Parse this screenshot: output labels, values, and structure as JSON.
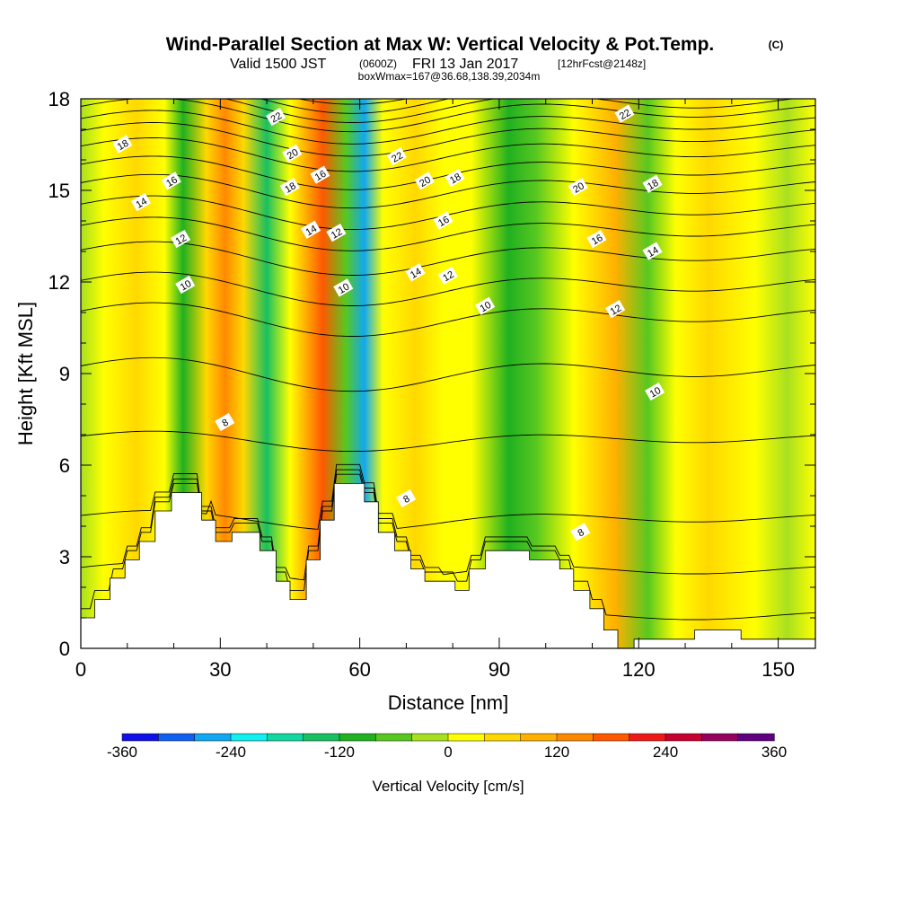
{
  "header": {
    "title": "Wind-Parallel Section at Max W: Vertical Velocity & Pot.Temp.",
    "title_mark": "(C)",
    "valid_prefix": "Valid 1500 JST",
    "valid_utc": "(0600Z)",
    "valid_date": "FRI 13 Jan 2017",
    "forecast": "[12hrFcst@2148z]",
    "box_info": "boxWmax=167@36.68,138.39,2034m"
  },
  "chart_data": {
    "type": "heatmap",
    "xlabel": "Distance [nm]",
    "ylabel": "Height [Kft MSL]",
    "xlim": [
      0,
      158
    ],
    "ylim": [
      0,
      18
    ],
    "x_ticks": [
      "0",
      "30",
      "60",
      "90",
      "120",
      "150"
    ],
    "y_ticks": [
      "0",
      "3",
      "6",
      "9",
      "12",
      "15",
      "18"
    ],
    "colorbar": {
      "label": "Vertical Velocity [cm/s]",
      "range": [
        -360,
        360
      ],
      "step": 40,
      "tick_labels": [
        "-360",
        "-240",
        "-120",
        "0",
        "120",
        "240",
        "360"
      ],
      "colors": [
        "#1010e8",
        "#1060f0",
        "#10a8f0",
        "#10f0f0",
        "#10d8a0",
        "#18c060",
        "#20b020",
        "#58c820",
        "#a8e020",
        "#ffff00",
        "#ffd800",
        "#ffb000",
        "#ff8800",
        "#ff5800",
        "#f01818",
        "#c80030",
        "#980060",
        "#600080"
      ]
    },
    "vertical_velocity_bands": [
      {
        "x": 0,
        "value": -20
      },
      {
        "x": 5,
        "value": 20
      },
      {
        "x": 12,
        "value": 50
      },
      {
        "x": 18,
        "value": 30
      },
      {
        "x": 22,
        "value": -100
      },
      {
        "x": 27,
        "value": 40
      },
      {
        "x": 31,
        "value": 150
      },
      {
        "x": 35,
        "value": 40
      },
      {
        "x": 40,
        "value": -140
      },
      {
        "x": 45,
        "value": 10
      },
      {
        "x": 52,
        "value": 170
      },
      {
        "x": 57,
        "value": -60
      },
      {
        "x": 61,
        "value": -260
      },
      {
        "x": 65,
        "value": 20
      },
      {
        "x": 72,
        "value": 60
      },
      {
        "x": 78,
        "value": 30
      },
      {
        "x": 84,
        "value": 20
      },
      {
        "x": 92,
        "value": -110
      },
      {
        "x": 98,
        "value": -80
      },
      {
        "x": 106,
        "value": 20
      },
      {
        "x": 115,
        "value": 90
      },
      {
        "x": 122,
        "value": -80
      },
      {
        "x": 128,
        "value": 10
      },
      {
        "x": 135,
        "value": 40
      },
      {
        "x": 145,
        "value": 20
      },
      {
        "x": 152,
        "value": -20
      },
      {
        "x": 158,
        "value": 10
      }
    ],
    "theta_contours": {
      "labeled_levels": [
        "8",
        "10",
        "12",
        "14",
        "16",
        "18",
        "20",
        "22"
      ],
      "levels": [
        6,
        7,
        8,
        9,
        10,
        11,
        12,
        13,
        14,
        15,
        16,
        17,
        18,
        19,
        20,
        21,
        22,
        23,
        24
      ],
      "base_heights_kft": [
        1,
        2.5,
        4.2,
        6.8,
        9,
        10.8,
        11.8,
        12.8,
        13.6,
        14.3,
        15,
        15.6,
        16.2,
        16.7,
        17.1,
        17.5,
        17.8,
        18.1,
        18.4
      ],
      "labels": [
        {
          "text": "18",
          "x": 9,
          "y": 16.5
        },
        {
          "text": "16",
          "x": 19.5,
          "y": 15.3
        },
        {
          "text": "14",
          "x": 13,
          "y": 14.6
        },
        {
          "text": "12",
          "x": 21.5,
          "y": 13.4
        },
        {
          "text": "10",
          "x": 22.5,
          "y": 11.9
        },
        {
          "text": "8",
          "x": 31,
          "y": 7.4
        },
        {
          "text": "22",
          "x": 42,
          "y": 17.4
        },
        {
          "text": "20",
          "x": 45.5,
          "y": 16.2
        },
        {
          "text": "18",
          "x": 45,
          "y": 15.1
        },
        {
          "text": "16",
          "x": 51.5,
          "y": 15.5
        },
        {
          "text": "14",
          "x": 49.5,
          "y": 13.7
        },
        {
          "text": "12",
          "x": 55,
          "y": 13.6
        },
        {
          "text": "10",
          "x": 56.5,
          "y": 11.8
        },
        {
          "text": "22",
          "x": 68,
          "y": 16.1
        },
        {
          "text": "20",
          "x": 74,
          "y": 15.3
        },
        {
          "text": "18",
          "x": 80.5,
          "y": 15.4
        },
        {
          "text": "16",
          "x": 78,
          "y": 14.0
        },
        {
          "text": "14",
          "x": 72,
          "y": 12.3
        },
        {
          "text": "12",
          "x": 79,
          "y": 12.2
        },
        {
          "text": "10",
          "x": 87,
          "y": 11.2
        },
        {
          "text": "8",
          "x": 70,
          "y": 4.9
        },
        {
          "text": "22",
          "x": 117,
          "y": 17.5
        },
        {
          "text": "20",
          "x": 107,
          "y": 15.1
        },
        {
          "text": "18",
          "x": 123,
          "y": 15.2
        },
        {
          "text": "16",
          "x": 111,
          "y": 13.4
        },
        {
          "text": "14",
          "x": 123,
          "y": 13.0
        },
        {
          "text": "12",
          "x": 115,
          "y": 11.1
        },
        {
          "text": "10",
          "x": 123.5,
          "y": 8.4
        },
        {
          "text": "8",
          "x": 107.5,
          "y": 3.8
        }
      ]
    },
    "terrain_kft": [
      [
        0,
        1.0
      ],
      [
        3,
        1.0
      ],
      [
        3,
        1.6
      ],
      [
        6.3,
        1.6
      ],
      [
        6.3,
        2.3
      ],
      [
        9.5,
        2.3
      ],
      [
        9.5,
        2.9
      ],
      [
        12.6,
        2.9
      ],
      [
        12.6,
        3.5
      ],
      [
        16,
        3.5
      ],
      [
        16,
        4.5
      ],
      [
        19.5,
        4.5
      ],
      [
        19.5,
        5.1
      ],
      [
        26,
        5.1
      ],
      [
        26,
        4.2
      ],
      [
        29,
        4.2
      ],
      [
        29,
        3.5
      ],
      [
        32.5,
        3.5
      ],
      [
        32.5,
        3.8
      ],
      [
        38.5,
        3.8
      ],
      [
        38.5,
        3.2
      ],
      [
        42,
        3.2
      ],
      [
        42,
        2.2
      ],
      [
        45,
        2.2
      ],
      [
        45,
        1.6
      ],
      [
        48.5,
        1.6
      ],
      [
        48.5,
        2.9
      ],
      [
        51.5,
        2.9
      ],
      [
        51.5,
        4.2
      ],
      [
        54.5,
        4.2
      ],
      [
        54.5,
        5.4
      ],
      [
        61,
        5.4
      ],
      [
        61,
        4.8
      ],
      [
        64,
        4.8
      ],
      [
        64,
        3.8
      ],
      [
        67.5,
        3.8
      ],
      [
        67.5,
        3.2
      ],
      [
        71,
        3.2
      ],
      [
        71,
        2.6
      ],
      [
        74,
        2.6
      ],
      [
        74,
        2.2
      ],
      [
        80.5,
        2.2
      ],
      [
        80.5,
        1.9
      ],
      [
        83.5,
        1.9
      ],
      [
        83.5,
        2.6
      ],
      [
        87,
        2.6
      ],
      [
        87,
        3.2
      ],
      [
        96.5,
        3.2
      ],
      [
        96.5,
        2.9
      ],
      [
        103,
        2.9
      ],
      [
        103,
        2.6
      ],
      [
        106,
        2.6
      ],
      [
        106,
        1.9
      ],
      [
        109.5,
        1.9
      ],
      [
        109.5,
        1.3
      ],
      [
        112.5,
        1.3
      ],
      [
        112.5,
        0.6
      ],
      [
        115.5,
        0.6
      ],
      [
        115.5,
        0
      ],
      [
        119,
        0
      ],
      [
        119,
        0.3
      ],
      [
        132,
        0.3
      ],
      [
        132,
        0.6
      ],
      [
        142,
        0.6
      ],
      [
        142,
        0.3
      ],
      [
        158,
        0.3
      ],
      [
        158,
        0
      ],
      [
        0,
        0
      ]
    ]
  }
}
